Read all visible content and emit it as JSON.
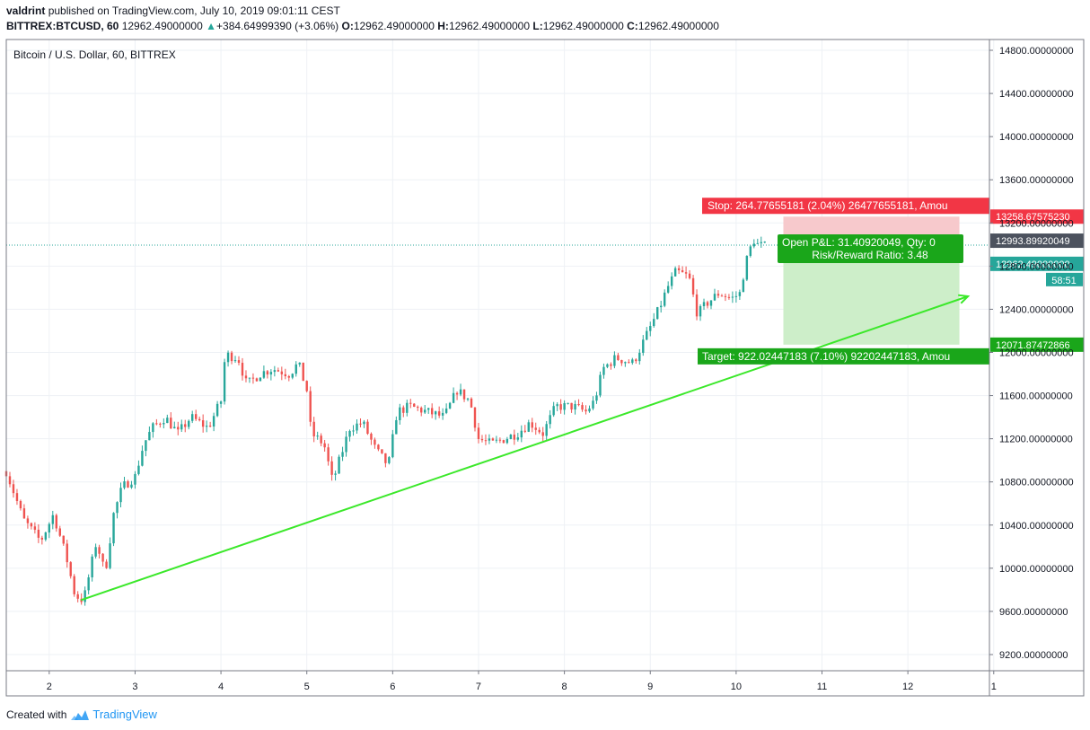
{
  "header": {
    "author": "valdrint",
    "published_text": "published on TradingView.com, July 10, 2019 09:01:11 CEST",
    "symbol": "BITTREX:BTCUSD, 60",
    "last_price": "12962.49000000",
    "change_arrow": "▲",
    "change": "+384.64999390 (+3.06%)",
    "o_label": "O:",
    "o_value": "12962.49000000",
    "h_label": "H:",
    "h_value": "12962.49000000",
    "l_label": "L:",
    "l_value": "12962.49000000",
    "c_label": "C:",
    "c_value": "12962.49000000"
  },
  "footer": {
    "created_with": "Created with",
    "brand": "TradingView"
  },
  "colors": {
    "up": "#26a69a",
    "down": "#ef5350",
    "trend": "#3be82a",
    "stop": "#f23645",
    "target": "#1aa61a",
    "last": "#26a69a"
  },
  "chart_data": {
    "type": "candlestick",
    "title": "Bitcoin / U.S. Dollar, 60, BITTREX",
    "x_ticks": [
      "2",
      "3",
      "4",
      "5",
      "6",
      "7",
      "8",
      "9",
      "10",
      "11",
      "12",
      "1"
    ],
    "y_ticks": [
      "9200.00000000",
      "9600.00000000",
      "10000.00000000",
      "10400.00000000",
      "10800.00000000",
      "11200.00000000",
      "11600.00000000",
      "12000.00000000",
      "12400.00000000",
      "12800.00000000",
      "13200.00000000",
      "13600.00000000",
      "14000.00000000",
      "14400.00000000",
      "14800.00000000"
    ],
    "ylim": [
      9050,
      14900
    ],
    "xlim": [
      1.5,
      12.95
    ],
    "price_path": [
      [
        1.5,
        10900
      ],
      [
        1.7,
        10450
      ],
      [
        1.9,
        10250
      ],
      [
        2.05,
        10500
      ],
      [
        2.2,
        10100
      ],
      [
        2.3,
        9750
      ],
      [
        2.4,
        9700
      ],
      [
        2.55,
        10250
      ],
      [
        2.65,
        9950
      ],
      [
        2.75,
        10500
      ],
      [
        2.85,
        10750
      ],
      [
        3.0,
        10850
      ],
      [
        3.1,
        11150
      ],
      [
        3.2,
        11300
      ],
      [
        3.35,
        11400
      ],
      [
        3.5,
        11250
      ],
      [
        3.65,
        11400
      ],
      [
        3.85,
        11300
      ],
      [
        4.0,
        11550
      ],
      [
        4.05,
        11980
      ],
      [
        4.2,
        11950
      ],
      [
        4.3,
        11700
      ],
      [
        4.45,
        11800
      ],
      [
        4.6,
        11850
      ],
      [
        4.8,
        11800
      ],
      [
        4.9,
        11900
      ],
      [
        5.0,
        11650
      ],
      [
        5.05,
        11250
      ],
      [
        5.2,
        11150
      ],
      [
        5.3,
        10800
      ],
      [
        5.4,
        11050
      ],
      [
        5.5,
        11300
      ],
      [
        5.65,
        11350
      ],
      [
        5.8,
        11100
      ],
      [
        5.95,
        10950
      ],
      [
        6.05,
        11450
      ],
      [
        6.2,
        11500
      ],
      [
        6.4,
        11450
      ],
      [
        6.6,
        11400
      ],
      [
        6.75,
        11650
      ],
      [
        6.9,
        11550
      ],
      [
        7.0,
        11200
      ],
      [
        7.15,
        11150
      ],
      [
        7.3,
        11200
      ],
      [
        7.45,
        11250
      ],
      [
        7.6,
        11350
      ],
      [
        7.75,
        11250
      ],
      [
        7.9,
        11500
      ],
      [
        8.1,
        11500
      ],
      [
        8.25,
        11450
      ],
      [
        8.35,
        11550
      ],
      [
        8.45,
        11850
      ],
      [
        8.6,
        11950
      ],
      [
        8.8,
        11900
      ],
      [
        8.95,
        12150
      ],
      [
        9.1,
        12400
      ],
      [
        9.2,
        12600
      ],
      [
        9.3,
        12750
      ],
      [
        9.45,
        12700
      ],
      [
        9.55,
        12350
      ],
      [
        9.65,
        12450
      ],
      [
        9.8,
        12550
      ],
      [
        9.95,
        12500
      ],
      [
        10.05,
        12550
      ],
      [
        10.1,
        12800
      ],
      [
        10.2,
        13050
      ],
      [
        10.25,
        13000
      ],
      [
        10.35,
        12980
      ]
    ],
    "last_price_label": "12962.49000000",
    "countdown_label": "58:51",
    "crosshair_price_label": "12993.89920049",
    "stop_price_label": "13258.67575230",
    "target_price_label": "12071.87472866",
    "trendline": {
      "from": [
        2.37,
        9705
      ],
      "to": [
        12.7,
        12520
      ]
    },
    "position": {
      "entry": 12993.9,
      "stop": 13258.68,
      "target": 12071.87,
      "x_start": 10.55,
      "x_end": 12.6,
      "stop_text": "Stop: 264.77655181 (2.04%) 26477655181, Amou",
      "target_text": "Target: 922.02447183 (7.10%) 92202447183, Amou",
      "pnl_text": "Open P&L: 31.40920049, Qty: 0",
      "ratio_text": "Risk/Reward Ratio: 3.48"
    }
  }
}
